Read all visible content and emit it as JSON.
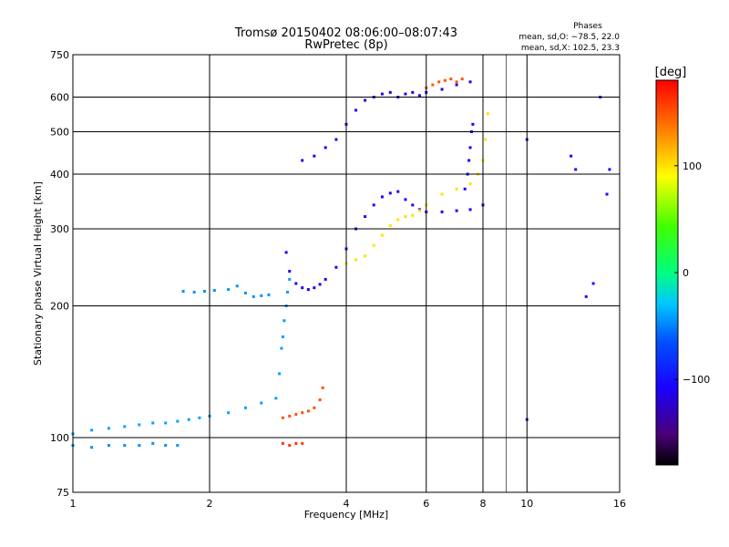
{
  "chart_data": {
    "type": "scatter",
    "title": "Tromsø 20150402 08:06:00–08:07:43",
    "subtitle": "RwPretec (8p)",
    "xlabel": "Frequency [MHz]",
    "ylabel": "Stationary phase Virtual Height [km]",
    "x_scale": "log",
    "y_scale": "log",
    "xlim": [
      1,
      16
    ],
    "ylim": [
      75,
      750
    ],
    "x_ticks": [
      1,
      2,
      4,
      6,
      8,
      10,
      16
    ],
    "y_ticks": [
      75,
      100,
      200,
      300,
      400,
      500,
      600,
      750
    ],
    "grid": true,
    "phases_box": {
      "title": "Phases",
      "line_o": "mean, sd,O: −78.5, 22.0",
      "line_x": "mean, sd,X: 102.5, 23.3"
    },
    "colorbar": {
      "label": "[deg]",
      "ticks": [
        100,
        0,
        -100
      ],
      "tick_labels": [
        "100",
        "0",
        "−100"
      ],
      "range": [
        -180,
        180
      ],
      "colormap": "rainbow (black→purple→blue→cyan→green→yellow→red)"
    },
    "series": [
      {
        "phase": -40,
        "x": [
          1.0,
          1.1,
          1.2,
          1.3,
          1.4,
          1.5,
          1.6,
          1.7,
          1.8,
          1.9,
          2.0,
          2.2,
          2.4,
          2.6,
          2.8
        ],
        "y": [
          102,
          104,
          105,
          106,
          107,
          108,
          108,
          109,
          110,
          111,
          112,
          114,
          117,
          120,
          123
        ]
      },
      {
        "phase": -45,
        "x": [
          1.0,
          1.1,
          1.2,
          1.3,
          1.4,
          1.5,
          1.6,
          1.7
        ],
        "y": [
          96,
          95,
          96,
          96,
          96,
          97,
          96,
          96
        ]
      },
      {
        "phase": -45,
        "x": [
          1.75,
          1.85,
          1.95,
          2.05,
          2.2,
          2.3,
          2.4,
          2.5,
          2.6,
          2.7
        ],
        "y": [
          216,
          215,
          216,
          217,
          218,
          222,
          214,
          210,
          211,
          212
        ]
      },
      {
        "phase": -42,
        "x": [
          2.85,
          2.88,
          2.9,
          2.92,
          2.95,
          2.97,
          3.0
        ],
        "y": [
          140,
          160,
          170,
          185,
          200,
          215,
          230
        ]
      },
      {
        "phase": 150,
        "x": [
          2.9,
          3.0,
          3.1,
          3.2,
          3.3,
          3.4,
          3.5,
          3.55
        ],
        "y": [
          111,
          112,
          113,
          114,
          115,
          117,
          122,
          130
        ]
      },
      {
        "phase": 160,
        "x": [
          2.9,
          3.0,
          3.1,
          3.2
        ],
        "y": [
          97,
          96,
          97,
          97
        ]
      },
      {
        "phase": -110,
        "x": [
          2.95,
          3.0,
          3.1,
          3.2,
          3.3,
          3.4,
          3.5,
          3.6,
          3.8,
          4.0,
          4.2,
          4.4,
          4.6,
          4.8,
          5.0,
          5.2,
          5.4,
          5.6,
          5.8,
          6.0,
          6.5,
          7.0,
          7.5,
          8.0
        ],
        "y": [
          265,
          240,
          225,
          220,
          218,
          220,
          224,
          230,
          245,
          270,
          300,
          320,
          340,
          355,
          362,
          365,
          350,
          340,
          332,
          328,
          328,
          330,
          332,
          340
        ]
      },
      {
        "phase": -115,
        "x": [
          3.2,
          3.4,
          3.6,
          3.8,
          4.0,
          4.2,
          4.4,
          4.6,
          4.8,
          5.0,
          5.2,
          5.4,
          5.6,
          5.8,
          6.0,
          6.5,
          7.0,
          7.5
        ],
        "y": [
          430,
          440,
          460,
          480,
          520,
          560,
          590,
          600,
          610,
          615,
          600,
          610,
          615,
          605,
          615,
          625,
          640,
          650
        ]
      },
      {
        "phase": 100,
        "x": [
          4.0,
          4.2,
          4.4,
          4.6,
          4.8,
          5.0,
          5.2,
          5.4,
          5.6,
          5.8,
          6.0,
          6.5,
          7.0,
          7.5,
          7.8,
          8.0,
          8.1,
          8.2
        ],
        "y": [
          250,
          255,
          260,
          275,
          290,
          305,
          315,
          320,
          322,
          330,
          340,
          360,
          370,
          380,
          400,
          430,
          480,
          550
        ]
      },
      {
        "phase": 150,
        "x": [
          6.0,
          6.2,
          6.4,
          6.6,
          6.8,
          7.0,
          7.2
        ],
        "y": [
          630,
          640,
          650,
          655,
          660,
          650,
          660
        ]
      },
      {
        "phase": -110,
        "x": [
          7.3,
          7.4,
          7.45,
          7.5,
          7.55,
          7.6
        ],
        "y": [
          370,
          400,
          430,
          460,
          500,
          520
        ]
      },
      {
        "phase": -100,
        "x": [
          10.0,
          10.0,
          12.5,
          12.8,
          13.5,
          14.0,
          14.5,
          15.2,
          15.0
        ],
        "y": [
          480,
          110,
          440,
          410,
          210,
          225,
          600,
          410,
          360
        ]
      }
    ]
  }
}
